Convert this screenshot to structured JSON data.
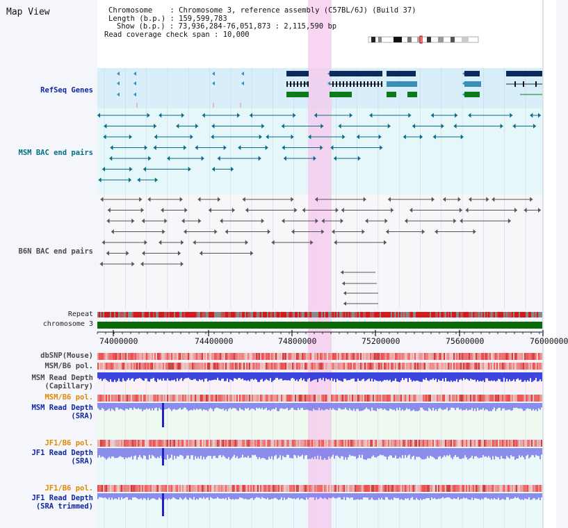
{
  "window": {
    "title": "Map View"
  },
  "info": {
    "chromosome_label": "Chromosome",
    "chromosome_value": "Chromosome 3, reference assembly (C57BL/6J) (Build 37)",
    "length_label": "Length (b.p.)",
    "length_value": "159,599,783",
    "show_label": "Show (b.p.)",
    "show_value": "73,936,284-76,051,873 : 2,115,590 bp",
    "coverage_label": "Read coverage check span",
    "coverage_value": "10,000"
  },
  "tracks": {
    "refseq": "RefSeq Genes",
    "msm_bac": "MSM BAC end pairs",
    "b6n_bac": "B6N BAC end pairs",
    "repeat": "Repeat",
    "chromosome": "chromosome 3",
    "dbsnp": "dbSNP(Mouse)",
    "msm_b6_pol_1": "MSM/B6 pol.",
    "msm_depth_cap": "MSM Read Depth\n(Capillary)",
    "msm_b6_pol_2": "MSM/B6 pol.",
    "msm_depth_sra": "MSM Read Depth\n(SRA)",
    "jf1_b6_pol_1": "JF1/B6 pol.",
    "jf1_depth_sra": "JF1 Read Depth\n(SRA)",
    "jf1_b6_pol_2": "JF1/B6 pol.",
    "jf1_depth_trim": "JF1 Read Depth\n(SRA trimmed)"
  },
  "axis": {
    "ticks": [
      "74000000",
      "74400000",
      "74800000",
      "75200000",
      "75600000",
      "76000000"
    ]
  },
  "colors": {
    "refseq_bg": "#d8eef8",
    "gene_navy": "#0a2a5c",
    "gene_teal": "#3a8fb8",
    "gene_green": "#0a7a1a",
    "msm_bac": "#0a6a8a",
    "b6n_bac": "#555555",
    "highlight": "#f6c8ee",
    "repeat_red": "#d81818",
    "chromosome": "#0a6a0a",
    "depth_blue": "#1a28d8",
    "depth_light": "#7a7ae8"
  }
}
